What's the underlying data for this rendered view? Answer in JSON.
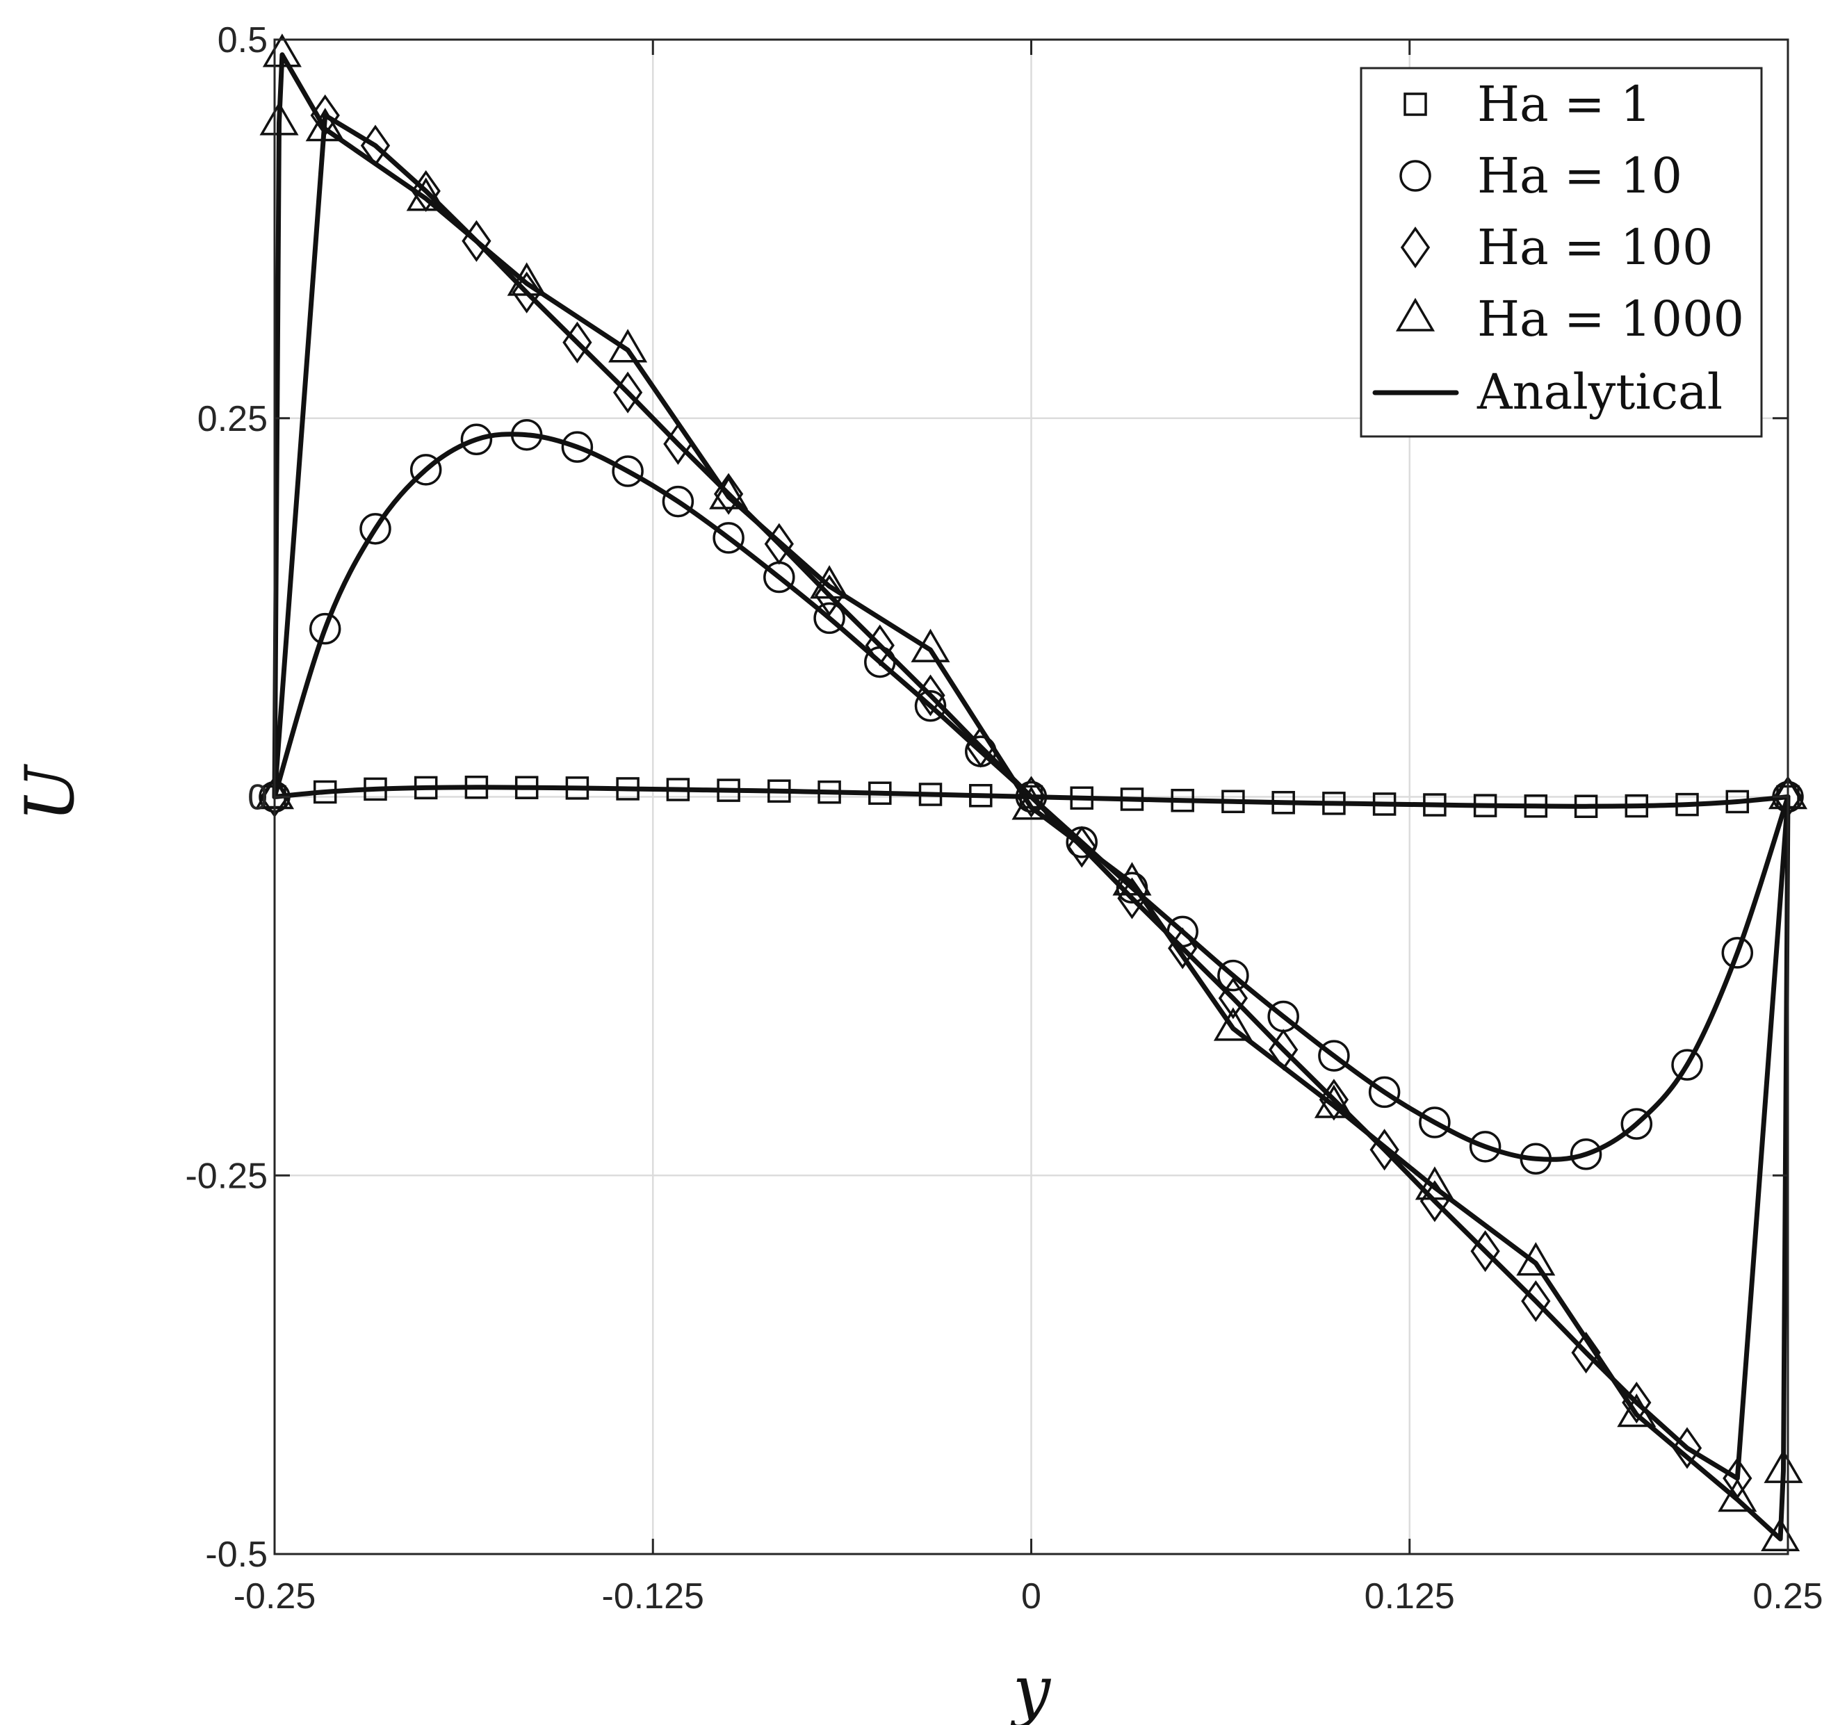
{
  "chart_data": {
    "type": "line",
    "title": "",
    "xlabel": "y",
    "ylabel": "U",
    "xlim": [
      -0.25,
      0.25
    ],
    "ylim": [
      -0.5,
      0.5
    ],
    "grid": true,
    "legend_position": "top-right",
    "x_ticks": [
      -0.25,
      -0.125,
      0,
      0.125,
      0.25
    ],
    "x_tick_labels": [
      "-0.25",
      "-0.125",
      "0",
      "0.125",
      "0.25"
    ],
    "y_ticks": [
      -0.5,
      -0.25,
      0,
      0.25,
      0.5
    ],
    "y_tick_labels": [
      "-0.5",
      "-0.25",
      "0",
      "0.25",
      "0.5"
    ],
    "analytical_label": "Analytical",
    "series": [
      {
        "name": "Ha = 1",
        "marker": "square",
        "x": [
          -0.25,
          -0.2333,
          -0.2167,
          -0.2,
          -0.1833,
          -0.1667,
          -0.15,
          -0.1333,
          -0.1167,
          -0.1,
          -0.0833,
          -0.0667,
          -0.05,
          -0.0333,
          -0.0167,
          0,
          0.0167,
          0.0333,
          0.05,
          0.0667,
          0.0833,
          0.1,
          0.1167,
          0.1333,
          0.15,
          0.1667,
          0.1833,
          0.2,
          0.2167,
          0.2333,
          0.25
        ],
        "y": [
          0,
          0.0032,
          0.0051,
          0.006,
          0.0063,
          0.0061,
          0.0058,
          0.0053,
          0.0048,
          0.0043,
          0.0038,
          0.0031,
          0.0024,
          0.0016,
          0.0008,
          0,
          -0.0008,
          -0.0016,
          -0.0024,
          -0.0031,
          -0.0038,
          -0.0043,
          -0.0048,
          -0.0053,
          -0.0058,
          -0.0061,
          -0.0063,
          -0.006,
          -0.0051,
          -0.0032,
          0
        ]
      },
      {
        "name": "Ha = 10",
        "marker": "circle",
        "x": [
          -0.25,
          -0.2333,
          -0.2167,
          -0.2,
          -0.1833,
          -0.1667,
          -0.15,
          -0.1333,
          -0.1167,
          -0.1,
          -0.0833,
          -0.0667,
          -0.05,
          -0.0333,
          -0.0167,
          0,
          0.0167,
          0.0333,
          0.05,
          0.0667,
          0.0833,
          0.1,
          0.1167,
          0.1333,
          0.15,
          0.1667,
          0.1833,
          0.2,
          0.2167,
          0.2333,
          0.25
        ],
        "y": [
          0,
          0.111,
          0.177,
          0.216,
          0.236,
          0.239,
          0.231,
          0.215,
          0.195,
          0.171,
          0.145,
          0.118,
          0.089,
          0.06,
          0.03,
          0,
          -0.03,
          -0.06,
          -0.089,
          -0.118,
          -0.145,
          -0.171,
          -0.195,
          -0.215,
          -0.231,
          -0.239,
          -0.236,
          -0.216,
          -0.177,
          -0.103,
          0
        ]
      },
      {
        "name": "Ha = 100",
        "marker": "diamond",
        "x": [
          -0.25,
          -0.2333,
          -0.2167,
          -0.2,
          -0.1833,
          -0.1667,
          -0.15,
          -0.1333,
          -0.1167,
          -0.1,
          -0.0833,
          -0.0667,
          -0.05,
          -0.0333,
          -0.0167,
          0,
          0.0167,
          0.0333,
          0.05,
          0.0667,
          0.0833,
          0.1,
          0.1167,
          0.1333,
          0.15,
          0.1667,
          0.1833,
          0.2,
          0.2167,
          0.2333,
          0.25
        ],
        "y": [
          0,
          0.45,
          0.43,
          0.4,
          0.367,
          0.333,
          0.3,
          0.267,
          0.233,
          0.2,
          0.167,
          0.133,
          0.1,
          0.067,
          0.033,
          0,
          -0.033,
          -0.067,
          -0.1,
          -0.133,
          -0.167,
          -0.2,
          -0.233,
          -0.267,
          -0.3,
          -0.333,
          -0.367,
          -0.4,
          -0.43,
          -0.45,
          0
        ]
      },
      {
        "name": "Ha = 1000",
        "marker": "triangle",
        "x": [
          -0.25,
          -0.2485,
          -0.2475,
          -0.2333,
          -0.2,
          -0.1667,
          -0.1333,
          -0.1,
          -0.0667,
          -0.0333,
          0,
          0.0333,
          0.0667,
          0.1,
          0.1333,
          0.1667,
          0.2,
          0.2333,
          0.2475,
          0.2485,
          0.25
        ],
        "y": [
          0,
          0.445,
          0.49,
          0.441,
          0.395,
          0.339,
          0.295,
          0.198,
          0.139,
          0.097,
          -0.007,
          -0.057,
          -0.153,
          -0.204,
          -0.258,
          -0.308,
          -0.408,
          -0.464,
          -0.49,
          -0.445,
          0
        ]
      }
    ]
  }
}
